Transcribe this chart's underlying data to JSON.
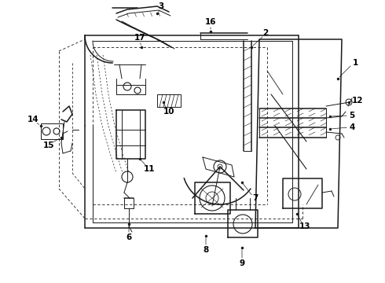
{
  "bg_color": "#ffffff",
  "line_color": "#1a1a1a",
  "label_color": "#000000",
  "label_fontsize": 7.5,
  "label_fontweight": "bold",
  "fig_width": 4.9,
  "fig_height": 3.6,
  "dpi": 100
}
